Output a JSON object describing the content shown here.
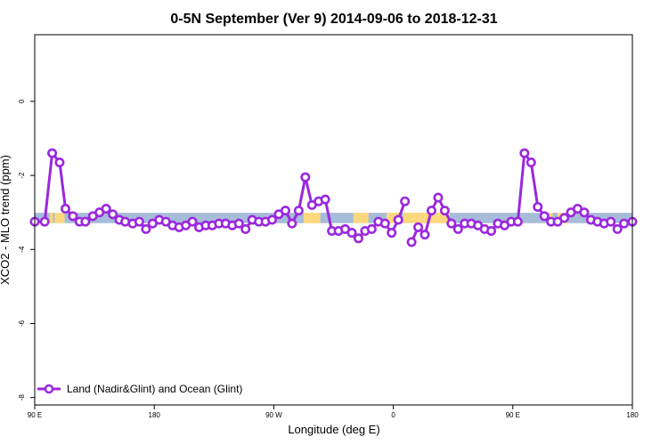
{
  "chart_data": {
    "type": "line",
    "title": "0-5N September (Ver 9)   2014-09-06 to 2018-12-31",
    "xlabel": "Longitude (deg E)",
    "ylabel": "XCO2 - MLO trend (ppm)",
    "xlim": [
      90,
      450
    ],
    "ylim": [
      -8.2,
      1.8
    ],
    "x_ticks": [
      {
        "value": 90,
        "label": "90 E"
      },
      {
        "value": 162,
        "label": "180"
      },
      {
        "value": 234,
        "label": "90 W"
      },
      {
        "value": 306,
        "label": "0"
      },
      {
        "value": 378,
        "label": "90 E"
      },
      {
        "value": 450,
        "label": "180"
      }
    ],
    "y_ticks": [
      {
        "value": 0,
        "label": "0"
      },
      {
        "value": -2,
        "label": "-2"
      },
      {
        "value": -4,
        "label": "-4"
      },
      {
        "value": -6,
        "label": "-6"
      },
      {
        "value": -8,
        "label": "-8"
      }
    ],
    "grid": false,
    "legend_position": "bottom-left",
    "surface_strip": {
      "y_center": -3.15,
      "y_half_height": 0.14,
      "colors": {
        "ocean": "#a7bcd9",
        "land": "#fbd77e"
      },
      "segments": [
        {
          "x0": 90,
          "x1": 99,
          "type": "ocean"
        },
        {
          "x0": 99,
          "x1": 101,
          "type": "land"
        },
        {
          "x0": 101,
          "x1": 102,
          "type": "ocean"
        },
        {
          "x0": 102,
          "x1": 108,
          "type": "land"
        },
        {
          "x0": 108,
          "x1": 252,
          "type": "ocean"
        },
        {
          "x0": 252,
          "x1": 262,
          "type": "land"
        },
        {
          "x0": 262,
          "x1": 282,
          "type": "ocean"
        },
        {
          "x0": 282,
          "x1": 291,
          "type": "land"
        },
        {
          "x0": 291,
          "x1": 302,
          "type": "ocean"
        },
        {
          "x0": 302,
          "x1": 310,
          "type": "land"
        },
        {
          "x0": 310,
          "x1": 312,
          "type": "ocean"
        },
        {
          "x0": 312,
          "x1": 340,
          "type": "land"
        },
        {
          "x0": 340,
          "x1": 400,
          "type": "ocean"
        },
        {
          "x0": 400,
          "x1": 402,
          "type": "land"
        },
        {
          "x0": 402,
          "x1": 405,
          "type": "ocean"
        },
        {
          "x0": 405,
          "x1": 411,
          "type": "land"
        },
        {
          "x0": 411,
          "x1": 450,
          "type": "ocean"
        }
      ]
    },
    "series": [
      {
        "name": "Land (Nadir&Glint) and Ocean (Glint)",
        "color": "#9a28de",
        "segments": [
          {
            "x": [
              90,
              96,
              100.5,
              105,
              108.5,
              113,
              117,
              120.5,
              125,
              129,
              133,
              137,
              141,
              144.5,
              149,
              153,
              157,
              161,
              165,
              169,
              173,
              177,
              181,
              185,
              189,
              193,
              197,
              201,
              205,
              209,
              213,
              217,
              221,
              225,
              229,
              233,
              237,
              241,
              245,
              249,
              253,
              257,
              261,
              265,
              269,
              273,
              277,
              281,
              285,
              289,
              293,
              297,
              301,
              305,
              309
            ],
            "y": [
              -3.25,
              -3.25,
              -1.4,
              -1.65,
              -2.9,
              -3.1,
              -3.25,
              -3.25,
              -3.1,
              -3.0,
              -2.9,
              -3.05,
              -3.2,
              -3.25,
              -3.3,
              -3.25,
              -3.45,
              -3.3,
              -3.2,
              -3.25,
              -3.35,
              -3.4,
              -3.35,
              -3.25,
              -3.4,
              -3.35,
              -3.35,
              -3.3,
              -3.3,
              -3.35,
              -3.3,
              -3.45,
              -3.2,
              -3.25,
              -3.25,
              -3.2,
              -3.05,
              -2.95,
              -3.3,
              -2.95,
              -2.05,
              -2.8,
              -2.7,
              -2.65,
              -3.5,
              -3.5,
              -3.45,
              -3.55,
              -3.7,
              -3.5,
              -3.45,
              -3.25,
              -3.3,
              -3.55,
              -3.2
            ]
          },
          {
            "x": [
              309,
              313
            ],
            "y": [
              -3.2,
              -2.7
            ]
          },
          {
            "x": [
              317,
              321,
              325,
              329,
              333,
              337,
              341,
              345,
              349,
              353,
              357,
              361,
              365,
              369,
              373,
              377,
              381,
              385,
              389,
              393,
              397,
              401,
              405,
              409,
              413,
              417,
              421,
              425,
              429,
              433,
              437,
              441,
              445,
              450
            ],
            "y": [
              -3.8,
              -3.4,
              -3.6,
              -2.95,
              -2.6,
              -2.95,
              -3.3,
              -3.45,
              -3.3,
              -3.3,
              -3.35,
              -3.45,
              -3.5,
              -3.3,
              -3.35,
              -3.25,
              -3.25,
              -1.4,
              -1.65,
              -2.85,
              -3.1,
              -3.25,
              -3.25,
              -3.15,
              -3.0,
              -2.9,
              -3.0,
              -3.2,
              -3.25,
              -3.3,
              -3.25,
              -3.45,
              -3.3,
              -3.25
            ]
          }
        ]
      }
    ]
  }
}
